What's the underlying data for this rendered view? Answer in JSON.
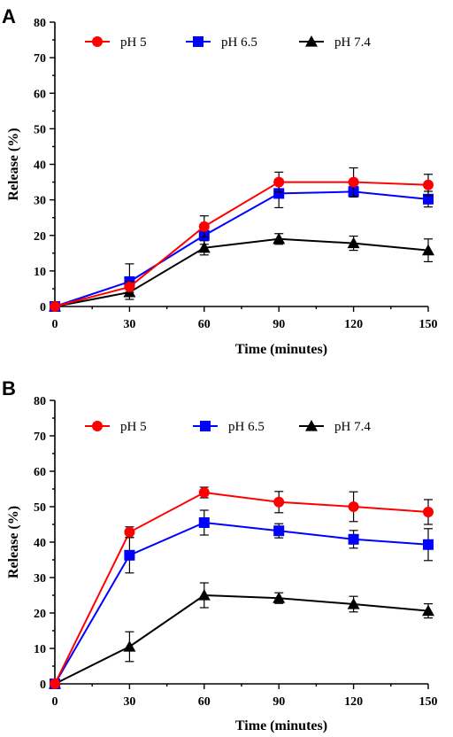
{
  "chart_data": [
    {
      "panel": "A",
      "type": "line",
      "xlabel": "Time (minutes)",
      "ylabel": "Release (%)",
      "x": [
        0,
        30,
        60,
        90,
        120,
        150
      ],
      "xticks": [
        "0",
        "30",
        "60",
        "90",
        "120",
        "150"
      ],
      "yticks": [
        "0",
        "10",
        "20",
        "30",
        "40",
        "50",
        "60",
        "70",
        "80"
      ],
      "xlim": [
        0,
        150
      ],
      "ylim": [
        0,
        80
      ],
      "legend_position": "top",
      "series": [
        {
          "name": "pH 5",
          "color": "#ff0000",
          "marker": "circle",
          "values": [
            0,
            5.5,
            22.5,
            35,
            35,
            34.2
          ],
          "errors": [
            0.4,
            1.5,
            3.0,
            2.8,
            4.0,
            3.0
          ]
        },
        {
          "name": "pH 6.5",
          "color": "#0000ff",
          "marker": "square",
          "values": [
            0,
            7,
            20,
            31.8,
            32.3,
            30.2
          ],
          "errors": [
            0.4,
            5.0,
            2.5,
            4.0,
            1.5,
            2.2
          ]
        },
        {
          "name": "pH 7.4",
          "color": "#000000",
          "marker": "triangle",
          "values": [
            0,
            4,
            16.5,
            19,
            17.8,
            15.8
          ],
          "errors": [
            0.4,
            1.2,
            2.0,
            1.5,
            2.0,
            3.2
          ]
        }
      ]
    },
    {
      "panel": "B",
      "type": "line",
      "xlabel": "Time (minutes)",
      "ylabel": "Release (%)",
      "x": [
        0,
        30,
        60,
        90,
        120,
        150
      ],
      "xticks": [
        "0",
        "30",
        "60",
        "90",
        "120",
        "150"
      ],
      "yticks": [
        "0",
        "10",
        "20",
        "30",
        "40",
        "50",
        "60",
        "70",
        "80"
      ],
      "xlim": [
        0,
        150
      ],
      "ylim": [
        0,
        80
      ],
      "legend_position": "top",
      "series": [
        {
          "name": "pH 5",
          "color": "#ff0000",
          "marker": "circle",
          "values": [
            0,
            42.8,
            54,
            51.3,
            50,
            48.5
          ],
          "errors": [
            0.4,
            1.5,
            1.5,
            3.0,
            4.2,
            3.5
          ]
        },
        {
          "name": "pH 6.5",
          "color": "#0000ff",
          "marker": "square",
          "values": [
            0,
            36.3,
            45.5,
            43.2,
            40.8,
            39.3
          ],
          "errors": [
            0.4,
            5.0,
            3.5,
            2.0,
            2.5,
            4.5
          ]
        },
        {
          "name": "pH 7.4",
          "color": "#000000",
          "marker": "triangle",
          "values": [
            0,
            10.5,
            25,
            24.2,
            22.5,
            20.6
          ],
          "errors": [
            0.4,
            4.2,
            3.5,
            1.5,
            2.2,
            2.0
          ]
        }
      ]
    }
  ]
}
